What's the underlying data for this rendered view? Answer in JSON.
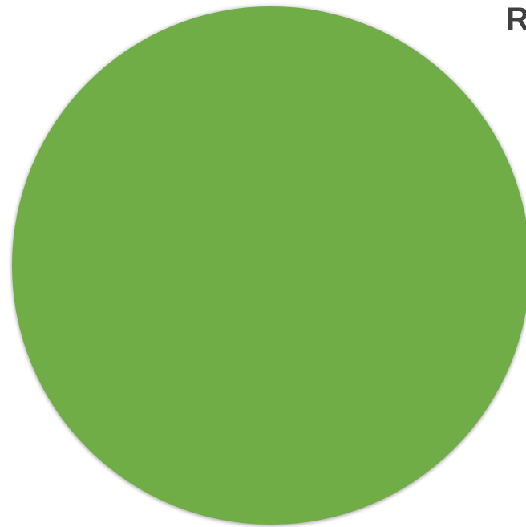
{
  "shape": {
    "type": "circle",
    "fill_color": "#70AD47"
  },
  "edge_text": {
    "label": "R",
    "color": "#404040"
  }
}
